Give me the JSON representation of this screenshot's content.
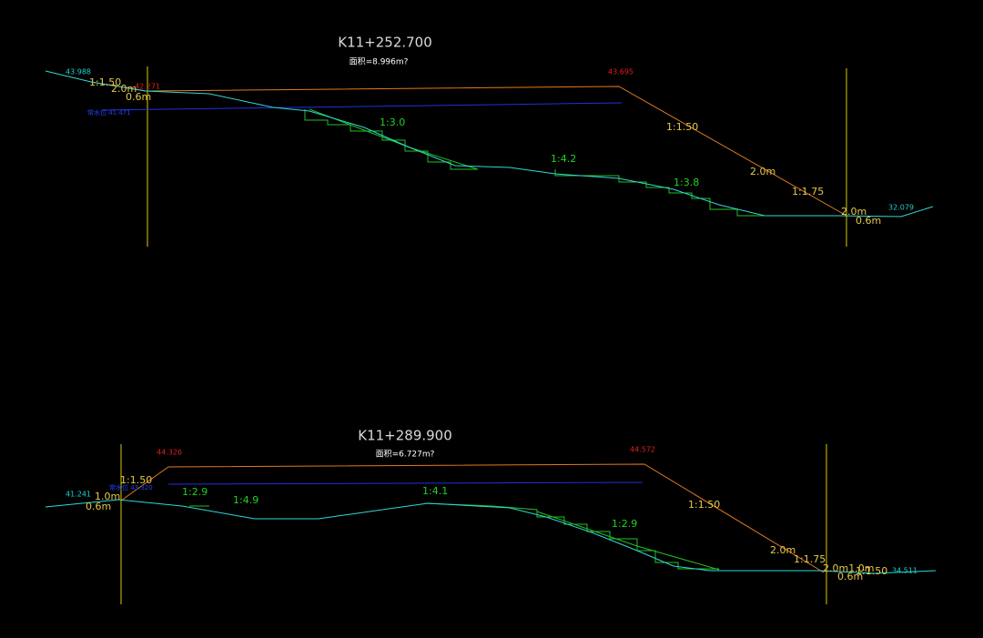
{
  "sections": [
    {
      "title": "K11+252.700",
      "area": "面积=8.996m?",
      "labels": [
        "43.988",
        "1:1.50",
        "2.0m",
        "42.271",
        "0.6m",
        "常水位 41.471",
        "43.695",
        "1:3.0",
        "1:1.50",
        "1:4.2",
        "2.0m",
        "1:3.8",
        "1:1.75",
        "2.0m",
        "0.6m",
        "32.079"
      ]
    },
    {
      "title": "K11+289.900",
      "area": "面积=6.727m?",
      "labels": [
        "44.326",
        "44.572",
        "1:1.50",
        "常水位 43.320",
        "41.241",
        "1:2.9",
        "1.0m",
        "0.6m",
        "1:4.9",
        "1:4.1",
        "1:1.50",
        "1:2.9",
        "2.0m",
        "1:1.75",
        "2.0m1.0m",
        "1:1.50",
        "0.6m",
        "34.511"
      ]
    }
  ]
}
